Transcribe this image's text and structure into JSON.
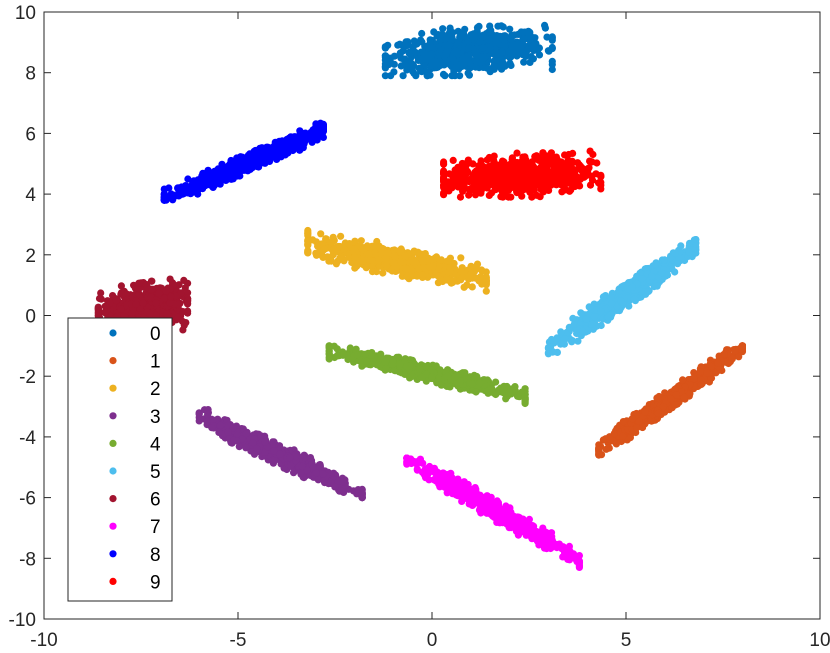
{
  "chart_data": {
    "type": "scatter",
    "title": "",
    "xlabel": "",
    "ylabel": "",
    "xlim": [
      -10,
      10
    ],
    "ylim": [
      -10,
      10
    ],
    "x_ticks": [
      "-10",
      "-5",
      "0",
      "5",
      "10"
    ],
    "y_ticks": [
      "10",
      "8",
      "6",
      "4",
      "2",
      "0",
      "-2",
      "-4",
      "-6",
      "-8",
      "-10"
    ],
    "grid": false,
    "legend_position": "lower-left",
    "series": [
      {
        "name": "0",
        "color": "#0072BD",
        "cluster": {
          "x_range": [
            -1.2,
            3.2
          ],
          "y_range": [
            7.9,
            9.9
          ],
          "center": [
            0.9,
            8.7
          ]
        }
      },
      {
        "name": "1",
        "color": "#D95319",
        "cluster": {
          "x_range": [
            4.2,
            8.0
          ],
          "y_range": [
            -4.6,
            -1.0
          ],
          "center": [
            6.2,
            -2.7
          ]
        }
      },
      {
        "name": "2",
        "color": "#EDB120",
        "cluster": {
          "x_range": [
            -3.2,
            1.4
          ],
          "y_range": [
            0.8,
            2.8
          ],
          "center": [
            -0.9,
            1.8
          ]
        }
      },
      {
        "name": "3",
        "color": "#7E2F8E",
        "cluster": {
          "x_range": [
            -6.0,
            -1.8
          ],
          "y_range": [
            -6.0,
            -3.1
          ],
          "center": [
            -3.9,
            -4.6
          ]
        }
      },
      {
        "name": "4",
        "color": "#77AC30",
        "cluster": {
          "x_range": [
            -2.7,
            2.4
          ],
          "y_range": [
            -2.9,
            -1.0
          ],
          "center": [
            -0.1,
            -1.9
          ]
        }
      },
      {
        "name": "5",
        "color": "#4DBEEE",
        "cluster": {
          "x_range": [
            3.0,
            6.8
          ],
          "y_range": [
            -1.3,
            2.5
          ],
          "center": [
            4.9,
            0.6
          ]
        }
      },
      {
        "name": "6",
        "color": "#A2142F",
        "cluster": {
          "x_range": [
            -8.7,
            -6.3
          ],
          "y_range": [
            -1.0,
            1.2
          ],
          "center": [
            -7.4,
            0.2
          ]
        }
      },
      {
        "name": "7",
        "color": "#FF00FF",
        "cluster": {
          "x_range": [
            -0.7,
            3.8
          ],
          "y_range": [
            -8.3,
            -4.7
          ],
          "center": [
            1.6,
            -6.4
          ]
        }
      },
      {
        "name": "8",
        "color": "#0000FF",
        "cluster": {
          "x_range": [
            -7.0,
            -2.8
          ],
          "y_range": [
            3.8,
            6.4
          ],
          "center": [
            -4.8,
            5.0
          ]
        }
      },
      {
        "name": "9",
        "color": "#FF0000",
        "cluster": {
          "x_range": [
            0.3,
            4.4
          ],
          "y_range": [
            3.9,
            5.6
          ],
          "center": [
            2.3,
            4.6
          ]
        }
      }
    ]
  }
}
